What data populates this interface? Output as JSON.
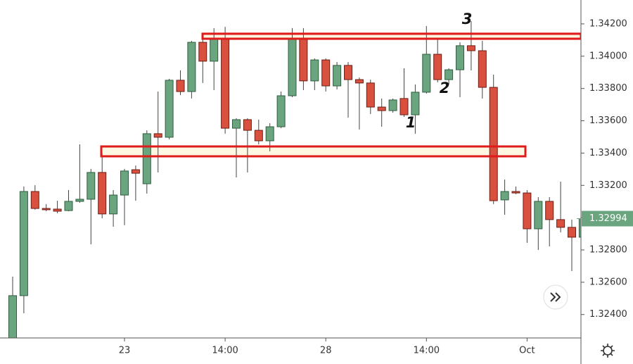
{
  "chart_data": {
    "type": "candlestick",
    "ylim": [
      1.32255,
      1.34348
    ],
    "yticks": [
      {
        "value": 1.342,
        "label": "1.34200"
      },
      {
        "value": 1.34,
        "label": "1.34000"
      },
      {
        "value": 1.338,
        "label": "1.33800"
      },
      {
        "value": 1.336,
        "label": "1.33600"
      },
      {
        "value": 1.334,
        "label": "1.33400"
      },
      {
        "value": 1.332,
        "label": "1.33200"
      },
      {
        "value": 1.33,
        "label": "1.33000"
      },
      {
        "value": 1.328,
        "label": "1.32800"
      },
      {
        "value": 1.326,
        "label": "1.32600"
      },
      {
        "value": 1.324,
        "label": "1.32400"
      }
    ],
    "categories": [
      null,
      null,
      null,
      null,
      null,
      null,
      null,
      null,
      null,
      null,
      "23",
      null,
      null,
      null,
      null,
      null,
      null,
      null,
      null,
      "14:00",
      null,
      null,
      null,
      null,
      null,
      null,
      null,
      null,
      "28",
      null,
      null,
      null,
      null,
      null,
      null,
      null,
      null,
      "14:00",
      null,
      null,
      null,
      null,
      null,
      null,
      null,
      null,
      "Oct",
      null,
      null,
      null,
      null,
      null
    ],
    "candles": [
      [
        1.32233,
        1.32635,
        1.32212,
        1.32517
      ],
      [
        1.32517,
        1.33193,
        1.32408,
        1.33162
      ],
      [
        1.33162,
        1.33201,
        1.33049,
        1.33057
      ],
      [
        1.33057,
        1.33084,
        1.3304,
        1.33049
      ],
      [
        1.33053,
        1.33105,
        1.33027,
        1.3304
      ],
      [
        1.33044,
        1.33171,
        1.3304,
        1.33101
      ],
      [
        1.33101,
        1.33454,
        1.33092,
        1.33114
      ],
      [
        1.33114,
        1.33302,
        1.32835,
        1.3328
      ],
      [
        1.3328,
        1.33398,
        1.32996,
        1.33023
      ],
      [
        1.33023,
        1.33171,
        1.32944,
        1.3314
      ],
      [
        1.3314,
        1.33302,
        1.32953,
        1.33289
      ],
      [
        1.33297,
        1.33323,
        1.33105,
        1.33275
      ],
      [
        1.3321,
        1.33541,
        1.33149,
        1.3352
      ],
      [
        1.3352,
        1.33781,
        1.3328,
        1.33498
      ],
      [
        1.33498,
        1.3386,
        1.33485,
        1.33851
      ],
      [
        1.33851,
        1.33912,
        1.33759,
        1.33781
      ],
      [
        1.33781,
        1.34095,
        1.33738,
        1.34086
      ],
      [
        1.34086,
        1.34117,
        1.33834,
        1.33969
      ],
      [
        1.33969,
        1.34174,
        1.3379,
        1.34108
      ],
      [
        1.34108,
        1.34182,
        1.3352,
        1.33554
      ],
      [
        1.33554,
        1.33616,
        1.33249,
        1.33607
      ],
      [
        1.33607,
        1.33616,
        1.3328,
        1.33541
      ],
      [
        1.33541,
        1.33607,
        1.33454,
        1.33476
      ],
      [
        1.33476,
        1.33585,
        1.33411,
        1.33563
      ],
      [
        1.33563,
        1.33781,
        1.33554,
        1.33755
      ],
      [
        1.33755,
        1.34174,
        1.33746,
        1.34108
      ],
      [
        1.34108,
        1.34174,
        1.3379,
        1.33847
      ],
      [
        1.33847,
        1.33986,
        1.3379,
        1.33977
      ],
      [
        1.33977,
        1.33986,
        1.33781,
        1.33816
      ],
      [
        1.33816,
        1.33964,
        1.33794,
        1.33943
      ],
      [
        1.33943,
        1.33964,
        1.3362,
        1.33855
      ],
      [
        1.33855,
        1.33868,
        1.33546,
        1.33834
      ],
      [
        1.33834,
        1.33855,
        1.33642,
        1.33685
      ],
      [
        1.33685,
        1.33738,
        1.33563,
        1.33663
      ],
      [
        1.33663,
        1.33738,
        1.3365,
        1.33729
      ],
      [
        1.33738,
        1.33925,
        1.33624,
        1.33637
      ],
      [
        1.33637,
        1.33825,
        1.3352,
        1.33777
      ],
      [
        1.33777,
        1.34187,
        1.33768,
        1.34012
      ],
      [
        1.34012,
        1.34108,
        1.33838,
        1.33855
      ],
      [
        1.33855,
        1.33925,
        1.33825,
        1.33916
      ],
      [
        1.33916,
        1.34086,
        1.33746,
        1.34065
      ],
      [
        1.34065,
        1.34217,
        1.33912,
        1.34034
      ],
      [
        1.34034,
        1.34095,
        1.33738,
        1.33807
      ],
      [
        1.33807,
        1.33886,
        1.33084,
        1.33105
      ],
      [
        1.3311,
        1.33236,
        1.33018,
        1.33162
      ],
      [
        1.33162,
        1.33193,
        1.33145,
        1.33153
      ],
      [
        1.33153,
        1.33171,
        1.32844,
        1.32931
      ],
      [
        1.32931,
        1.33127,
        1.328,
        1.33101
      ],
      [
        1.33101,
        1.33127,
        1.32822,
        1.32988
      ],
      [
        1.32988,
        1.33223,
        1.32909,
        1.3294
      ],
      [
        1.3294,
        1.32988,
        1.32669,
        1.32879
      ],
      [
        1.32879,
        1.3304,
        1.32735,
        1.32994
      ]
    ],
    "up_color": "#6aa57f",
    "down_color": "#d9503f",
    "last_price": {
      "value": 1.32994,
      "label": "1.32994"
    },
    "zones": [
      {
        "top": 1.34139,
        "bottom": 1.34108
      },
      {
        "top": 1.33441,
        "bottom": 1.3338
      }
    ],
    "annotations": [
      "1",
      "2",
      "3"
    ]
  }
}
